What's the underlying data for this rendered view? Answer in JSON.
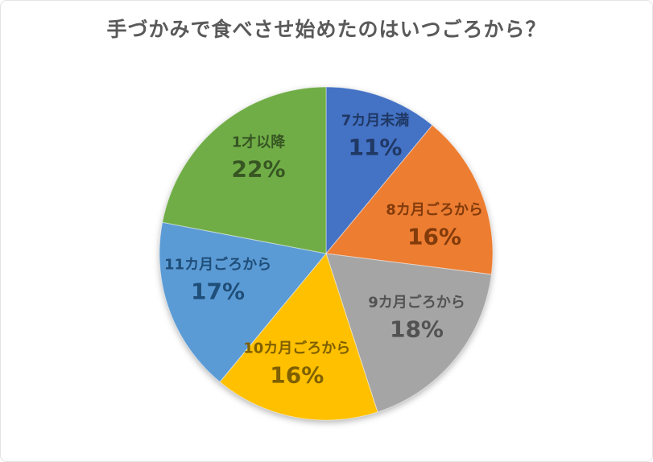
{
  "chart_data": {
    "type": "pie",
    "title": "手づかみで食べさせ始めたのはいつごろから？",
    "title_color": "#595959",
    "categories": [
      "7カ月未満",
      "8カ月ごろから",
      "9カ月ごろから",
      "10カ月ごろから",
      "11カ月ごろから",
      "1才以降"
    ],
    "values": [
      11,
      16,
      18,
      16,
      17,
      22
    ],
    "value_suffix": "%",
    "slice_colors": [
      "#4472C4",
      "#ED7D31",
      "#A5A5A5",
      "#FFC000",
      "#5B9BD5",
      "#70AD47"
    ],
    "label_text_colors": [
      "#1F3864",
      "#823B0B",
      "#525252",
      "#7F6000",
      "#1F4E79",
      "#375623"
    ],
    "start_angle_deg": 0,
    "direction": "clockwise",
    "legend": "none",
    "label_position": "inside",
    "label_format": "category + percent"
  }
}
